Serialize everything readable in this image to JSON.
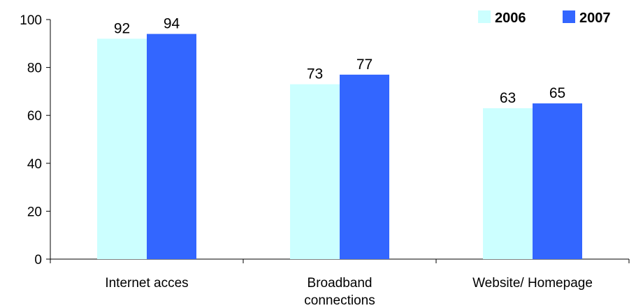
{
  "chart_data": {
    "type": "bar",
    "categories": [
      [
        "Internet acces"
      ],
      [
        "Broadband",
        "connections"
      ],
      [
        "Website/ Homepage"
      ]
    ],
    "series": [
      {
        "name": "2006",
        "values": [
          92,
          73,
          63
        ],
        "color": "#ccffff"
      },
      {
        "name": "2007",
        "values": [
          94,
          77,
          65
        ],
        "color": "#3366ff"
      }
    ],
    "data_labels": [
      [
        "92",
        "73",
        "63"
      ],
      [
        "94",
        "77",
        "65"
      ]
    ],
    "yticks": [
      "0",
      "20",
      "40",
      "60",
      "80",
      "100"
    ],
    "ylim": [
      0,
      100
    ],
    "grid": false,
    "legend": "top-right"
  }
}
